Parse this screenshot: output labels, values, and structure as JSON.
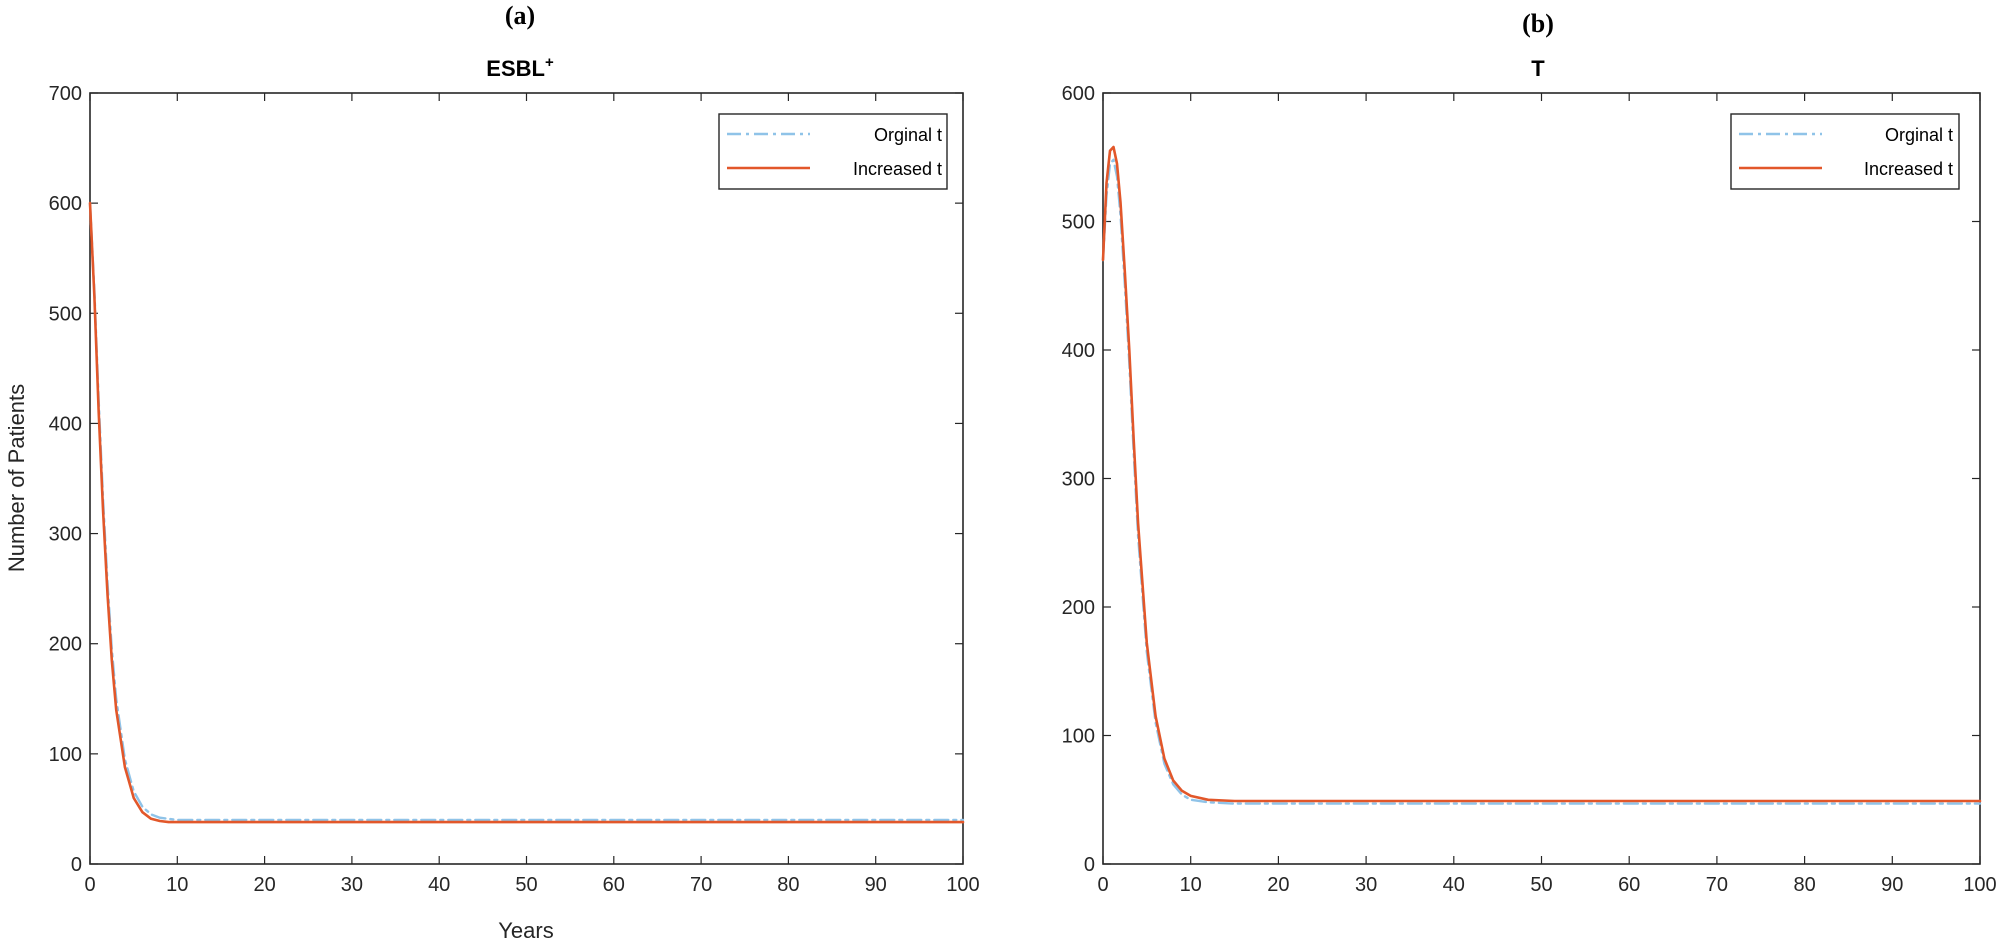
{
  "colors": {
    "original": "#8fc3e8",
    "increased": "#e2572a",
    "axis": "#262626"
  },
  "chart_data": [
    {
      "type": "line",
      "panel_label": "(a)",
      "title": "ESBL",
      "title_superscript": "+",
      "xlabel": "Years",
      "ylabel": "Number of Patients",
      "xlim": [
        0,
        100
      ],
      "ylim": [
        0,
        700
      ],
      "xticks": [
        0,
        10,
        20,
        30,
        40,
        50,
        60,
        70,
        80,
        90,
        100
      ],
      "yticks": [
        0,
        100,
        200,
        300,
        400,
        500,
        600,
        700
      ],
      "legend_position": "top-right",
      "grid": false,
      "series": [
        {
          "name": "Orginal t",
          "style": "dash-dot",
          "x": [
            0,
            0.5,
            1,
            1.5,
            2,
            2.5,
            3,
            4,
            5,
            6,
            7,
            8,
            9,
            10,
            15,
            20,
            30,
            40,
            50,
            60,
            70,
            80,
            90,
            100
          ],
          "y": [
            600,
            520,
            420,
            330,
            255,
            195,
            150,
            95,
            66,
            52,
            45,
            42,
            41,
            40,
            40,
            40,
            40,
            40,
            40,
            40,
            40,
            40,
            40,
            40
          ]
        },
        {
          "name": "Increased t",
          "style": "solid",
          "x": [
            0,
            0.5,
            1,
            1.5,
            2,
            2.5,
            3,
            4,
            5,
            6,
            7,
            8,
            9,
            10,
            15,
            20,
            30,
            40,
            50,
            60,
            70,
            80,
            90,
            100
          ],
          "y": [
            600,
            515,
            410,
            320,
            245,
            185,
            140,
            88,
            60,
            47,
            41,
            39,
            38,
            38,
            38,
            38,
            38,
            38,
            38,
            38,
            38,
            38,
            38,
            38
          ]
        }
      ]
    },
    {
      "type": "line",
      "panel_label": "(b)",
      "title": "T",
      "title_superscript": "",
      "xlabel": "",
      "ylabel": "",
      "xlim": [
        0,
        100
      ],
      "ylim": [
        0,
        600
      ],
      "xticks": [
        0,
        10,
        20,
        30,
        40,
        50,
        60,
        70,
        80,
        90,
        100
      ],
      "yticks": [
        0,
        100,
        200,
        300,
        400,
        500,
        600
      ],
      "legend_position": "top-right",
      "grid": false,
      "series": [
        {
          "name": "Orginal t",
          "style": "dash-dot",
          "x": [
            0,
            0.4,
            0.8,
            1.2,
            1.6,
            2,
            2.5,
            3,
            3.5,
            4,
            5,
            6,
            7,
            8,
            9,
            10,
            12,
            15,
            20,
            30,
            40,
            50,
            60,
            70,
            80,
            90,
            100
          ],
          "y": [
            470,
            520,
            545,
            548,
            535,
            505,
            450,
            390,
            320,
            255,
            165,
            110,
            78,
            62,
            54,
            50,
            48,
            47,
            47,
            47,
            47,
            47,
            47,
            47,
            47,
            47,
            47
          ],
          "_": ""
        },
        {
          "name": "Increased t",
          "style": "solid",
          "x": [
            0,
            0.4,
            0.8,
            1.2,
            1.6,
            2,
            2.5,
            3,
            3.5,
            4,
            5,
            6,
            7,
            8,
            9,
            10,
            12,
            15,
            20,
            30,
            40,
            50,
            60,
            70,
            80,
            90,
            100
          ],
          "y": [
            470,
            530,
            555,
            558,
            545,
            515,
            460,
            400,
            330,
            265,
            172,
            115,
            82,
            65,
            57,
            53,
            50,
            49,
            49,
            49,
            49,
            49,
            49,
            49,
            49,
            49,
            49
          ]
        }
      ]
    }
  ]
}
